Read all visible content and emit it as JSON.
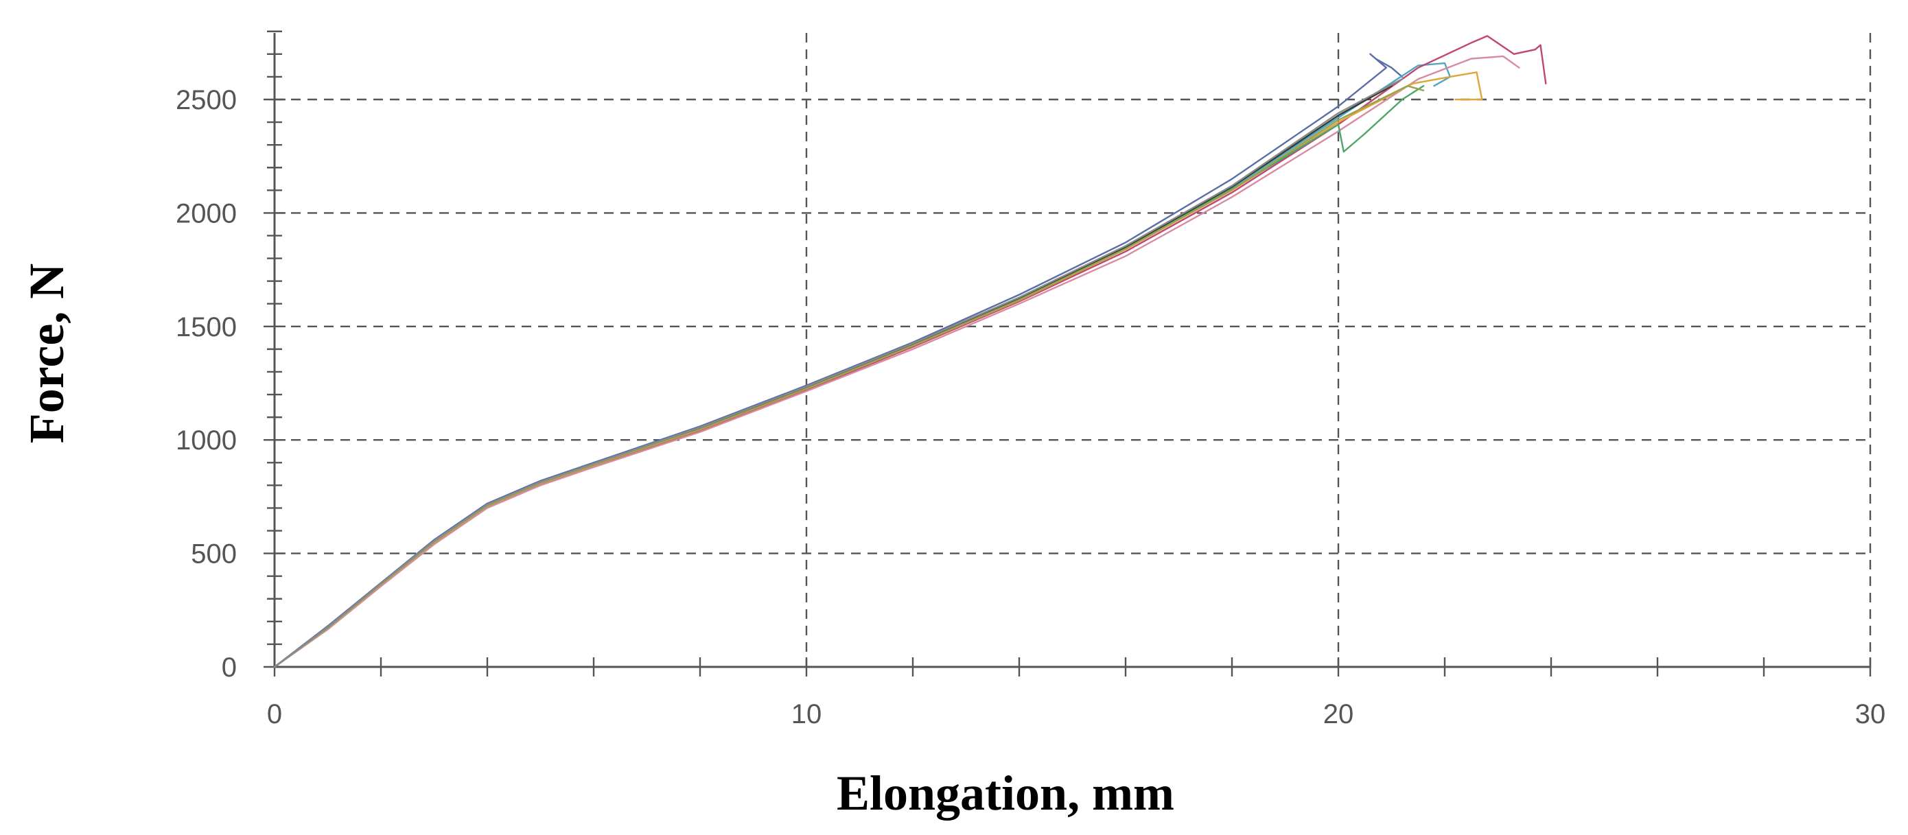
{
  "chart_data": {
    "type": "line",
    "xlabel": "Elongation, mm",
    "ylabel": "Force, N",
    "xlim": [
      0,
      30
    ],
    "ylim": [
      0,
      2800
    ],
    "x_ticks": [
      0,
      10,
      20,
      30
    ],
    "y_ticks": [
      0,
      500,
      1000,
      1500,
      2000,
      2500
    ],
    "x_minor_step": 2,
    "y_minor_step": 100,
    "grid": true,
    "legend": "none",
    "series": [
      {
        "color": "#5c6ea8",
        "x": [
          0,
          1,
          2,
          3,
          4,
          5,
          6,
          8,
          10,
          12,
          14,
          16,
          18,
          20,
          20.9,
          20.6,
          20.7,
          21.0,
          21.2
        ],
        "y": [
          0,
          180,
          370,
          560,
          720,
          820,
          900,
          1060,
          1240,
          1430,
          1640,
          1870,
          2150,
          2470,
          2640,
          2700,
          2680,
          2640,
          2600
        ]
      },
      {
        "color": "#4fa6c8",
        "x": [
          0,
          1,
          2,
          3,
          4,
          5,
          6,
          8,
          10,
          12,
          14,
          16,
          18,
          20,
          21.5,
          22.0,
          22.1,
          21.8
        ],
        "y": [
          0,
          175,
          365,
          550,
          710,
          810,
          890,
          1050,
          1230,
          1420,
          1620,
          1850,
          2110,
          2420,
          2650,
          2660,
          2600,
          2560
        ]
      },
      {
        "color": "#c2456e",
        "x": [
          0,
          1,
          2,
          3,
          4,
          5,
          6,
          8,
          10,
          12,
          14,
          16,
          18,
          20,
          21.5,
          22.5,
          22.8,
          23.3,
          23.7,
          23.8,
          23.9
        ],
        "y": [
          0,
          170,
          360,
          545,
          705,
          805,
          885,
          1040,
          1220,
          1410,
          1610,
          1830,
          2090,
          2390,
          2640,
          2750,
          2780,
          2700,
          2720,
          2740,
          2570
        ]
      },
      {
        "color": "#d98aa0",
        "x": [
          0,
          1,
          2,
          3,
          4,
          5,
          6,
          8,
          10,
          12,
          14,
          16,
          18,
          20,
          21.5,
          22.5,
          23.1,
          23.4
        ],
        "y": [
          0,
          165,
          355,
          540,
          700,
          800,
          880,
          1035,
          1215,
          1400,
          1600,
          1810,
          2070,
          2360,
          2590,
          2680,
          2690,
          2640
        ]
      },
      {
        "color": "#e0a53a",
        "x": [
          0,
          1,
          2,
          3,
          4,
          5,
          6,
          8,
          10,
          12,
          14,
          16,
          18,
          20,
          21.4,
          22.1,
          22.6,
          22.7,
          22.2
        ],
        "y": [
          0,
          170,
          362,
          548,
          708,
          808,
          888,
          1045,
          1225,
          1415,
          1615,
          1840,
          2100,
          2400,
          2570,
          2600,
          2620,
          2500,
          2500
        ]
      },
      {
        "color": "#4fa36b",
        "x": [
          0,
          1,
          2,
          3,
          4,
          5,
          6,
          8,
          10,
          12,
          14,
          16,
          18,
          20,
          20.1,
          20.5,
          21.2,
          21.6
        ],
        "y": [
          0,
          172,
          364,
          552,
          712,
          812,
          892,
          1050,
          1228,
          1418,
          1618,
          1845,
          2105,
          2390,
          2270,
          2350,
          2500,
          2560
        ]
      },
      {
        "color": "#2f3d33",
        "x": [
          0,
          1,
          2,
          3,
          4,
          5,
          6,
          8,
          10,
          12,
          14,
          16,
          18,
          20,
          21.0
        ],
        "y": [
          0,
          173,
          366,
          553,
          713,
          813,
          893,
          1052,
          1232,
          1422,
          1625,
          1850,
          2115,
          2430,
          2560
        ]
      },
      {
        "color": "#9aa34e",
        "x": [
          0,
          1,
          2,
          3,
          4,
          5,
          6,
          8,
          10,
          12,
          14,
          16,
          18,
          20,
          21.3,
          21.6
        ],
        "y": [
          0,
          171,
          363,
          549,
          709,
          809,
          889,
          1047,
          1226,
          1416,
          1617,
          1842,
          2102,
          2410,
          2560,
          2540
        ]
      },
      {
        "color": "#8a8a8a",
        "x": [
          0,
          1,
          2,
          3,
          4,
          5,
          6,
          8,
          10,
          12,
          14,
          16,
          18,
          20,
          21.2
        ],
        "y": [
          0,
          174,
          367,
          555,
          715,
          815,
          895,
          1055,
          1235,
          1425,
          1628,
          1855,
          2120,
          2440,
          2590
        ]
      }
    ]
  }
}
